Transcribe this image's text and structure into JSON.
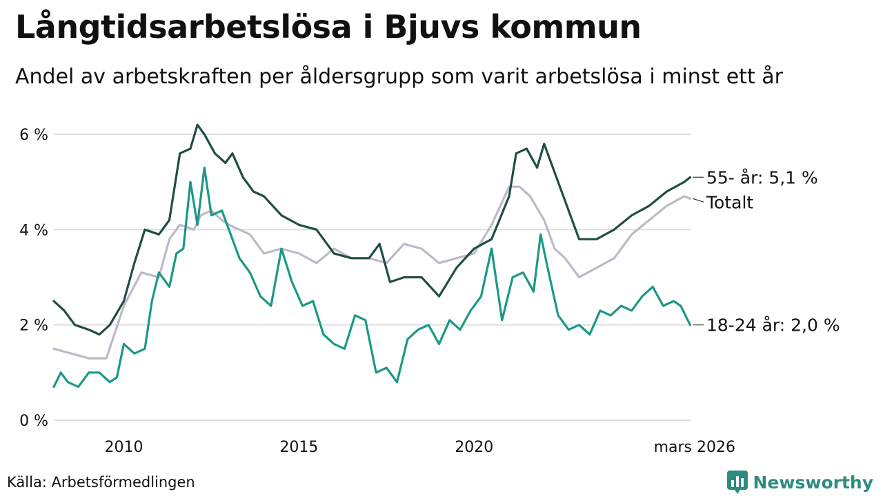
{
  "header": {
    "title": "Långtidsarbetslösa i Bjuvs kommun",
    "subtitle": "Andel av arbetskraften per åldersgrupp som varit arbetslösa i minst ett år"
  },
  "footer": {
    "source": "Källa: Arbetsförmedlingen",
    "brand": "Newsworthy"
  },
  "colors": {
    "series_55": "#1f4d44",
    "series_total": "#bdb9c9",
    "series_18_24": "#1a9985",
    "grid": "#dddddd",
    "brand": "#2e8b7f"
  },
  "chart_data": {
    "type": "line",
    "title": "Långtidsarbetslösa i Bjuvs kommun",
    "subtitle": "Andel av arbetskraften per åldersgrupp som varit arbetslösa i minst ett år",
    "xlabel": "",
    "ylabel": "",
    "x_range": [
      2008,
      2026.2
    ],
    "ylim": [
      0,
      6.3
    ],
    "y_ticks": [
      0,
      2,
      4,
      6
    ],
    "y_tick_labels": [
      "0 %",
      "2 %",
      "4 %",
      "6 %"
    ],
    "x_ticks": [
      2010,
      2015,
      2020,
      2026.17
    ],
    "x_tick_labels": [
      "2010",
      "2015",
      "2020",
      "mars 2026"
    ],
    "grid": true,
    "series": [
      {
        "name": "Totalt",
        "label": "Totalt",
        "color": "#bdb9c9",
        "x": [
          2008.0,
          2008.5,
          2009.0,
          2009.5,
          2010.0,
          2010.5,
          2011.0,
          2011.3,
          2011.6,
          2012.0,
          2012.2,
          2012.5,
          2012.8,
          2013.0,
          2013.3,
          2013.6,
          2014.0,
          2014.5,
          2015.0,
          2015.5,
          2016.0,
          2016.5,
          2017.0,
          2017.5,
          2018.0,
          2018.5,
          2019.0,
          2019.5,
          2020.0,
          2020.5,
          2021.0,
          2021.3,
          2021.6,
          2022.0,
          2022.3,
          2022.6,
          2023.0,
          2023.5,
          2024.0,
          2024.5,
          2025.0,
          2025.5,
          2026.0,
          2026.17
        ],
        "y": [
          1.5,
          1.4,
          1.3,
          1.3,
          2.4,
          3.1,
          3.0,
          3.8,
          4.1,
          4.0,
          4.3,
          4.4,
          4.2,
          4.1,
          4.0,
          3.9,
          3.5,
          3.6,
          3.5,
          3.3,
          3.6,
          3.4,
          3.4,
          3.3,
          3.7,
          3.6,
          3.3,
          3.4,
          3.5,
          4.1,
          4.9,
          4.9,
          4.7,
          4.2,
          3.6,
          3.4,
          3.0,
          3.2,
          3.4,
          3.9,
          4.2,
          4.5,
          4.7,
          4.65
        ],
        "end_label": "Totalt"
      },
      {
        "name": "55- år",
        "label": "55- år",
        "color": "#1f4d44",
        "x": [
          2008.0,
          2008.3,
          2008.6,
          2009.0,
          2009.3,
          2009.6,
          2010.0,
          2010.3,
          2010.6,
          2011.0,
          2011.3,
          2011.6,
          2011.9,
          2012.1,
          2012.3,
          2012.6,
          2012.9,
          2013.1,
          2013.4,
          2013.7,
          2014.0,
          2014.5,
          2015.0,
          2015.5,
          2016.0,
          2016.5,
          2017.0,
          2017.3,
          2017.6,
          2018.0,
          2018.5,
          2019.0,
          2019.5,
          2020.0,
          2020.5,
          2021.0,
          2021.2,
          2021.5,
          2021.8,
          2022.0,
          2022.3,
          2022.6,
          2023.0,
          2023.5,
          2024.0,
          2024.5,
          2025.0,
          2025.5,
          2026.0,
          2026.17
        ],
        "y": [
          2.5,
          2.3,
          2.0,
          1.9,
          1.8,
          2.0,
          2.5,
          3.3,
          4.0,
          3.9,
          4.2,
          5.6,
          5.7,
          6.2,
          6.0,
          5.6,
          5.4,
          5.6,
          5.1,
          4.8,
          4.7,
          4.3,
          4.1,
          4.0,
          3.5,
          3.4,
          3.4,
          3.7,
          2.9,
          3.0,
          3.0,
          2.6,
          3.2,
          3.6,
          3.8,
          4.7,
          5.6,
          5.7,
          5.3,
          5.8,
          5.2,
          4.6,
          3.8,
          3.8,
          4.0,
          4.3,
          4.5,
          4.8,
          5.0,
          5.1
        ],
        "end_label": "55- år: 5,1 %"
      },
      {
        "name": "18-24 år",
        "label": "18-24 år",
        "color": "#1a9985",
        "x": [
          2008.0,
          2008.2,
          2008.4,
          2008.7,
          2009.0,
          2009.3,
          2009.6,
          2009.8,
          2010.0,
          2010.3,
          2010.6,
          2010.8,
          2011.0,
          2011.3,
          2011.5,
          2011.7,
          2011.9,
          2012.1,
          2012.3,
          2012.5,
          2012.8,
          2013.0,
          2013.3,
          2013.6,
          2013.9,
          2014.2,
          2014.5,
          2014.8,
          2015.1,
          2015.4,
          2015.7,
          2016.0,
          2016.3,
          2016.6,
          2016.9,
          2017.2,
          2017.5,
          2017.8,
          2018.1,
          2018.4,
          2018.7,
          2019.0,
          2019.3,
          2019.6,
          2019.9,
          2020.2,
          2020.5,
          2020.8,
          2021.1,
          2021.4,
          2021.7,
          2021.9,
          2022.1,
          2022.4,
          2022.7,
          2023.0,
          2023.3,
          2023.6,
          2023.9,
          2024.2,
          2024.5,
          2024.8,
          2025.1,
          2025.4,
          2025.7,
          2025.9,
          2026.17
        ],
        "y": [
          0.7,
          1.0,
          0.8,
          0.7,
          1.0,
          1.0,
          0.8,
          0.9,
          1.6,
          1.4,
          1.5,
          2.5,
          3.1,
          2.8,
          3.5,
          3.6,
          5.0,
          4.1,
          5.3,
          4.3,
          4.4,
          4.0,
          3.4,
          3.1,
          2.6,
          2.4,
          3.6,
          2.9,
          2.4,
          2.5,
          1.8,
          1.6,
          1.5,
          2.2,
          2.1,
          1.0,
          1.1,
          0.8,
          1.7,
          1.9,
          2.0,
          1.6,
          2.1,
          1.9,
          2.3,
          2.6,
          3.6,
          2.1,
          3.0,
          3.1,
          2.7,
          3.9,
          3.2,
          2.2,
          1.9,
          2.0,
          1.8,
          2.3,
          2.2,
          2.4,
          2.3,
          2.6,
          2.8,
          2.4,
          2.5,
          2.4,
          2.0
        ],
        "end_label": "18-24 år: 2,0 %"
      }
    ]
  }
}
